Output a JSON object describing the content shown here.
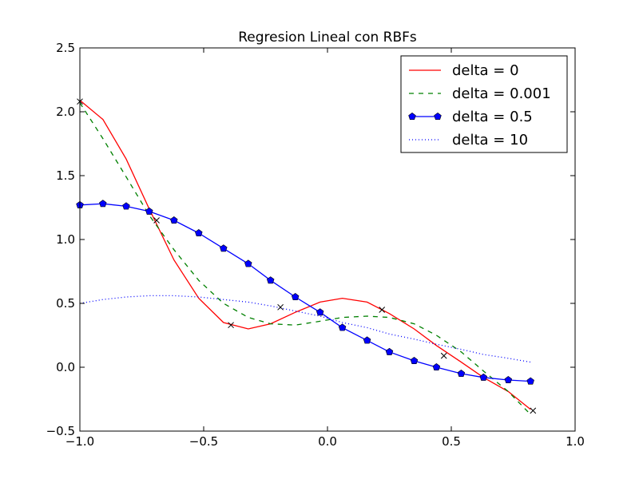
{
  "chart_data": {
    "type": "line",
    "title": "Regresion Lineal con RBFs",
    "xlabel": "",
    "ylabel": "",
    "xlim": [
      -1.0,
      1.0
    ],
    "ylim": [
      -0.5,
      2.5
    ],
    "grid": false,
    "legend_position": "top-right",
    "x_ticks": [
      -1.0,
      -0.5,
      0.0,
      0.5,
      1.0
    ],
    "x_tick_labels": [
      "−1.0",
      "−0.5",
      "0.0",
      "0.5",
      "1.0"
    ],
    "y_ticks": [
      -0.5,
      0.0,
      0.5,
      1.0,
      1.5,
      2.0,
      2.5
    ],
    "y_tick_labels": [
      "−0.5",
      "0.0",
      "0.5",
      "1.0",
      "1.5",
      "2.0",
      "2.5"
    ],
    "x": [
      -1.0,
      -0.9,
      -0.8,
      -0.7,
      -0.6,
      -0.5,
      -0.4,
      -0.3,
      -0.2,
      -0.1,
      0.0,
      0.1,
      0.2,
      0.3,
      0.4,
      0.5,
      0.6,
      0.7,
      0.8
    ],
    "series": [
      {
        "name": "delta = 0",
        "color": "#ff0000",
        "style": "solid",
        "marker": "none",
        "x": [
          -1.0,
          -0.907,
          -0.813,
          -0.72,
          -0.62,
          -0.52,
          -0.42,
          -0.32,
          -0.23,
          -0.13,
          -0.03,
          0.06,
          0.16,
          0.25,
          0.35,
          0.44,
          0.54,
          0.63,
          0.73,
          0.82
        ],
        "values": [
          2.09,
          1.94,
          1.63,
          1.24,
          0.84,
          0.54,
          0.35,
          0.3,
          0.34,
          0.43,
          0.51,
          0.54,
          0.51,
          0.42,
          0.3,
          0.17,
          0.04,
          -0.08,
          -0.19,
          -0.33
        ]
      },
      {
        "name": "delta = 0.001",
        "color": "#008000",
        "style": "dashed",
        "marker": "none",
        "x": [
          -1.0,
          -0.907,
          -0.813,
          -0.72,
          -0.62,
          -0.52,
          -0.42,
          -0.32,
          -0.23,
          -0.13,
          -0.03,
          0.06,
          0.16,
          0.25,
          0.35,
          0.44,
          0.54,
          0.63,
          0.73,
          0.82
        ],
        "values": [
          2.07,
          1.79,
          1.49,
          1.19,
          0.92,
          0.68,
          0.5,
          0.39,
          0.34,
          0.33,
          0.36,
          0.39,
          0.4,
          0.39,
          0.34,
          0.25,
          0.12,
          -0.03,
          -0.19,
          -0.37
        ]
      },
      {
        "name": "delta = 0.5",
        "color": "#0000ff",
        "style": "solid",
        "marker": "pentagon",
        "x": [
          -1.0,
          -0.907,
          -0.813,
          -0.72,
          -0.62,
          -0.52,
          -0.42,
          -0.32,
          -0.23,
          -0.13,
          -0.03,
          0.06,
          0.16,
          0.25,
          0.35,
          0.44,
          0.54,
          0.63,
          0.73,
          0.82
        ],
        "values": [
          1.27,
          1.28,
          1.26,
          1.22,
          1.15,
          1.05,
          0.93,
          0.81,
          0.68,
          0.55,
          0.43,
          0.31,
          0.21,
          0.12,
          0.05,
          0.0,
          -0.05,
          -0.08,
          -0.1,
          -0.11
        ]
      },
      {
        "name": "delta = 10",
        "color": "#0000ff",
        "style": "dotted",
        "marker": "none",
        "x": [
          -1.0,
          -0.907,
          -0.813,
          -0.72,
          -0.62,
          -0.52,
          -0.42,
          -0.32,
          -0.23,
          -0.13,
          -0.03,
          0.06,
          0.16,
          0.25,
          0.35,
          0.44,
          0.54,
          0.63,
          0.73,
          0.82
        ],
        "values": [
          0.5,
          0.53,
          0.55,
          0.56,
          0.56,
          0.55,
          0.53,
          0.51,
          0.48,
          0.44,
          0.4,
          0.35,
          0.31,
          0.26,
          0.22,
          0.18,
          0.14,
          0.1,
          0.07,
          0.04
        ]
      }
    ],
    "observations": {
      "marker": "x",
      "color": "#000000",
      "x": [
        -1.0,
        -0.69,
        -0.39,
        -0.19,
        0.22,
        0.47,
        0.83
      ],
      "y": [
        2.08,
        1.15,
        0.33,
        0.47,
        0.45,
        0.09,
        -0.34
      ]
    }
  }
}
